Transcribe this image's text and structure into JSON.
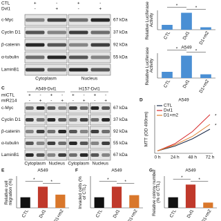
{
  "blots": [
    {
      "conditions": [
        {
          "name": "CTL",
          "signs": [
            "+",
            "-",
            "+",
            "-"
          ]
        },
        {
          "name": "Dvl1",
          "signs": [
            "-",
            "+",
            "-",
            "+"
          ]
        }
      ],
      "rows": [
        {
          "name": "c-Myc",
          "size": "67 kDa"
        },
        {
          "name": "Cyclin D1",
          "size": "37 kDa"
        },
        {
          "name": "β-catenin",
          "size": "92 kDa"
        },
        {
          "name": "α-tubulin",
          "size": "55 kDa"
        },
        {
          "name": "LaminB1"
        }
      ],
      "fractions": [
        "Cytoplasm",
        "Nucleus"
      ]
    },
    {
      "letter": "C",
      "groups": [
        "A549-Dvl1",
        "H157-Dvl1"
      ],
      "conditions": [
        {
          "name": "miCTL",
          "signs": [
            "+",
            "-",
            "+",
            "-",
            "+",
            "-",
            "+",
            "-"
          ]
        },
        {
          "name": "miR214",
          "signs": [
            "-",
            "+",
            "-",
            "+",
            "-",
            "+",
            "-",
            "+"
          ]
        }
      ],
      "rows": [
        {
          "name": "c-Myc",
          "size": "67 kDa"
        },
        {
          "name": "Cyclin D1",
          "size": "37 kDa"
        },
        {
          "name": "β-catenin",
          "size": "92 kDa"
        },
        {
          "name": "α-tubulin",
          "size": "55 kDa"
        },
        {
          "name": "LaminB1",
          "size": "67 kDa"
        }
      ],
      "fractions": [
        "Cytoplasm",
        "Nucleus",
        "Cytoplasm",
        "Nucleus"
      ]
    }
  ],
  "chart_data": [
    {
      "type": "bar",
      "ylabel": "Relative Luciferase Activity",
      "categories": [
        "CTL",
        "Dvl1",
        "D1+m2"
      ],
      "values": [
        1,
        3.5,
        0.5
      ],
      "colors": [
        "#4a8fd4",
        "#4a8fd4",
        "#4a8fd4"
      ],
      "ylim": [
        0,
        4
      ],
      "annotations": [
        "*",
        "*"
      ]
    },
    {
      "type": "bar",
      "title": "A549",
      "ylabel": "Relative Luciferase Activity",
      "categories": [
        "CTL",
        "Dvl1",
        "D1+m2"
      ],
      "values": [
        1,
        3.6,
        0.6
      ],
      "colors": [
        "#4a8fd4",
        "#4a8fd4",
        "#4a8fd4"
      ],
      "ylim": [
        0,
        4
      ],
      "annotations": [
        "*",
        "*"
      ]
    },
    {
      "type": "line",
      "letter": "D",
      "title": "A549",
      "ylabel": "MTT (OD 490nm)",
      "categories": [
        "0 h",
        "24 h",
        "48 h",
        "72 h"
      ],
      "series": [
        {
          "name": "CTL",
          "color": "#1b2a49",
          "values": [
            0.1,
            0.3,
            0.6,
            1.0
          ]
        },
        {
          "name": "Dvl1",
          "color": "#d62728",
          "values": [
            0.1,
            0.4,
            0.9,
            1.6
          ]
        },
        {
          "name": "D1+m2",
          "color": "#e08030",
          "values": [
            0.1,
            0.35,
            0.7,
            1.2
          ]
        }
      ],
      "ylim": [
        0,
        2
      ],
      "annotations": [
        "*",
        "*"
      ]
    },
    {
      "type": "bar",
      "letter": "E",
      "title": "A549",
      "ylabel": "Relative cell migration (%)",
      "categories": [
        "CTL",
        "Dvl1",
        "D1+m2"
      ],
      "values": [
        100,
        200,
        125
      ],
      "colors": [
        "#111111",
        "#c0392b",
        "#d9772b"
      ],
      "ylim": [
        0,
        300
      ],
      "annotations": [
        "*",
        "*"
      ]
    },
    {
      "type": "bar",
      "letter": "F",
      "title": "A549",
      "ylabel": "Invaded cells (% of CTL)",
      "categories": [
        "CTL",
        "Dvl1",
        "D1+m2"
      ],
      "values": [
        100,
        200,
        120
      ],
      "colors": [
        "#111111",
        "#c0392b",
        "#d9772b"
      ],
      "ylim": [
        0,
        300
      ],
      "annotations": [
        "*",
        "*"
      ]
    },
    {
      "type": "bar",
      "letter": "G",
      "title": "A549",
      "ylabel": "Relative colony number (% of CTL)",
      "categories": [
        "CTL",
        "Dvl1",
        "D1+m2"
      ],
      "values": [
        100,
        220,
        50
      ],
      "colors": [
        "#111111",
        "#c0392b",
        "#d9772b"
      ],
      "ylim": [
        0,
        300
      ],
      "annotations": [
        "*",
        "*"
      ]
    }
  ]
}
